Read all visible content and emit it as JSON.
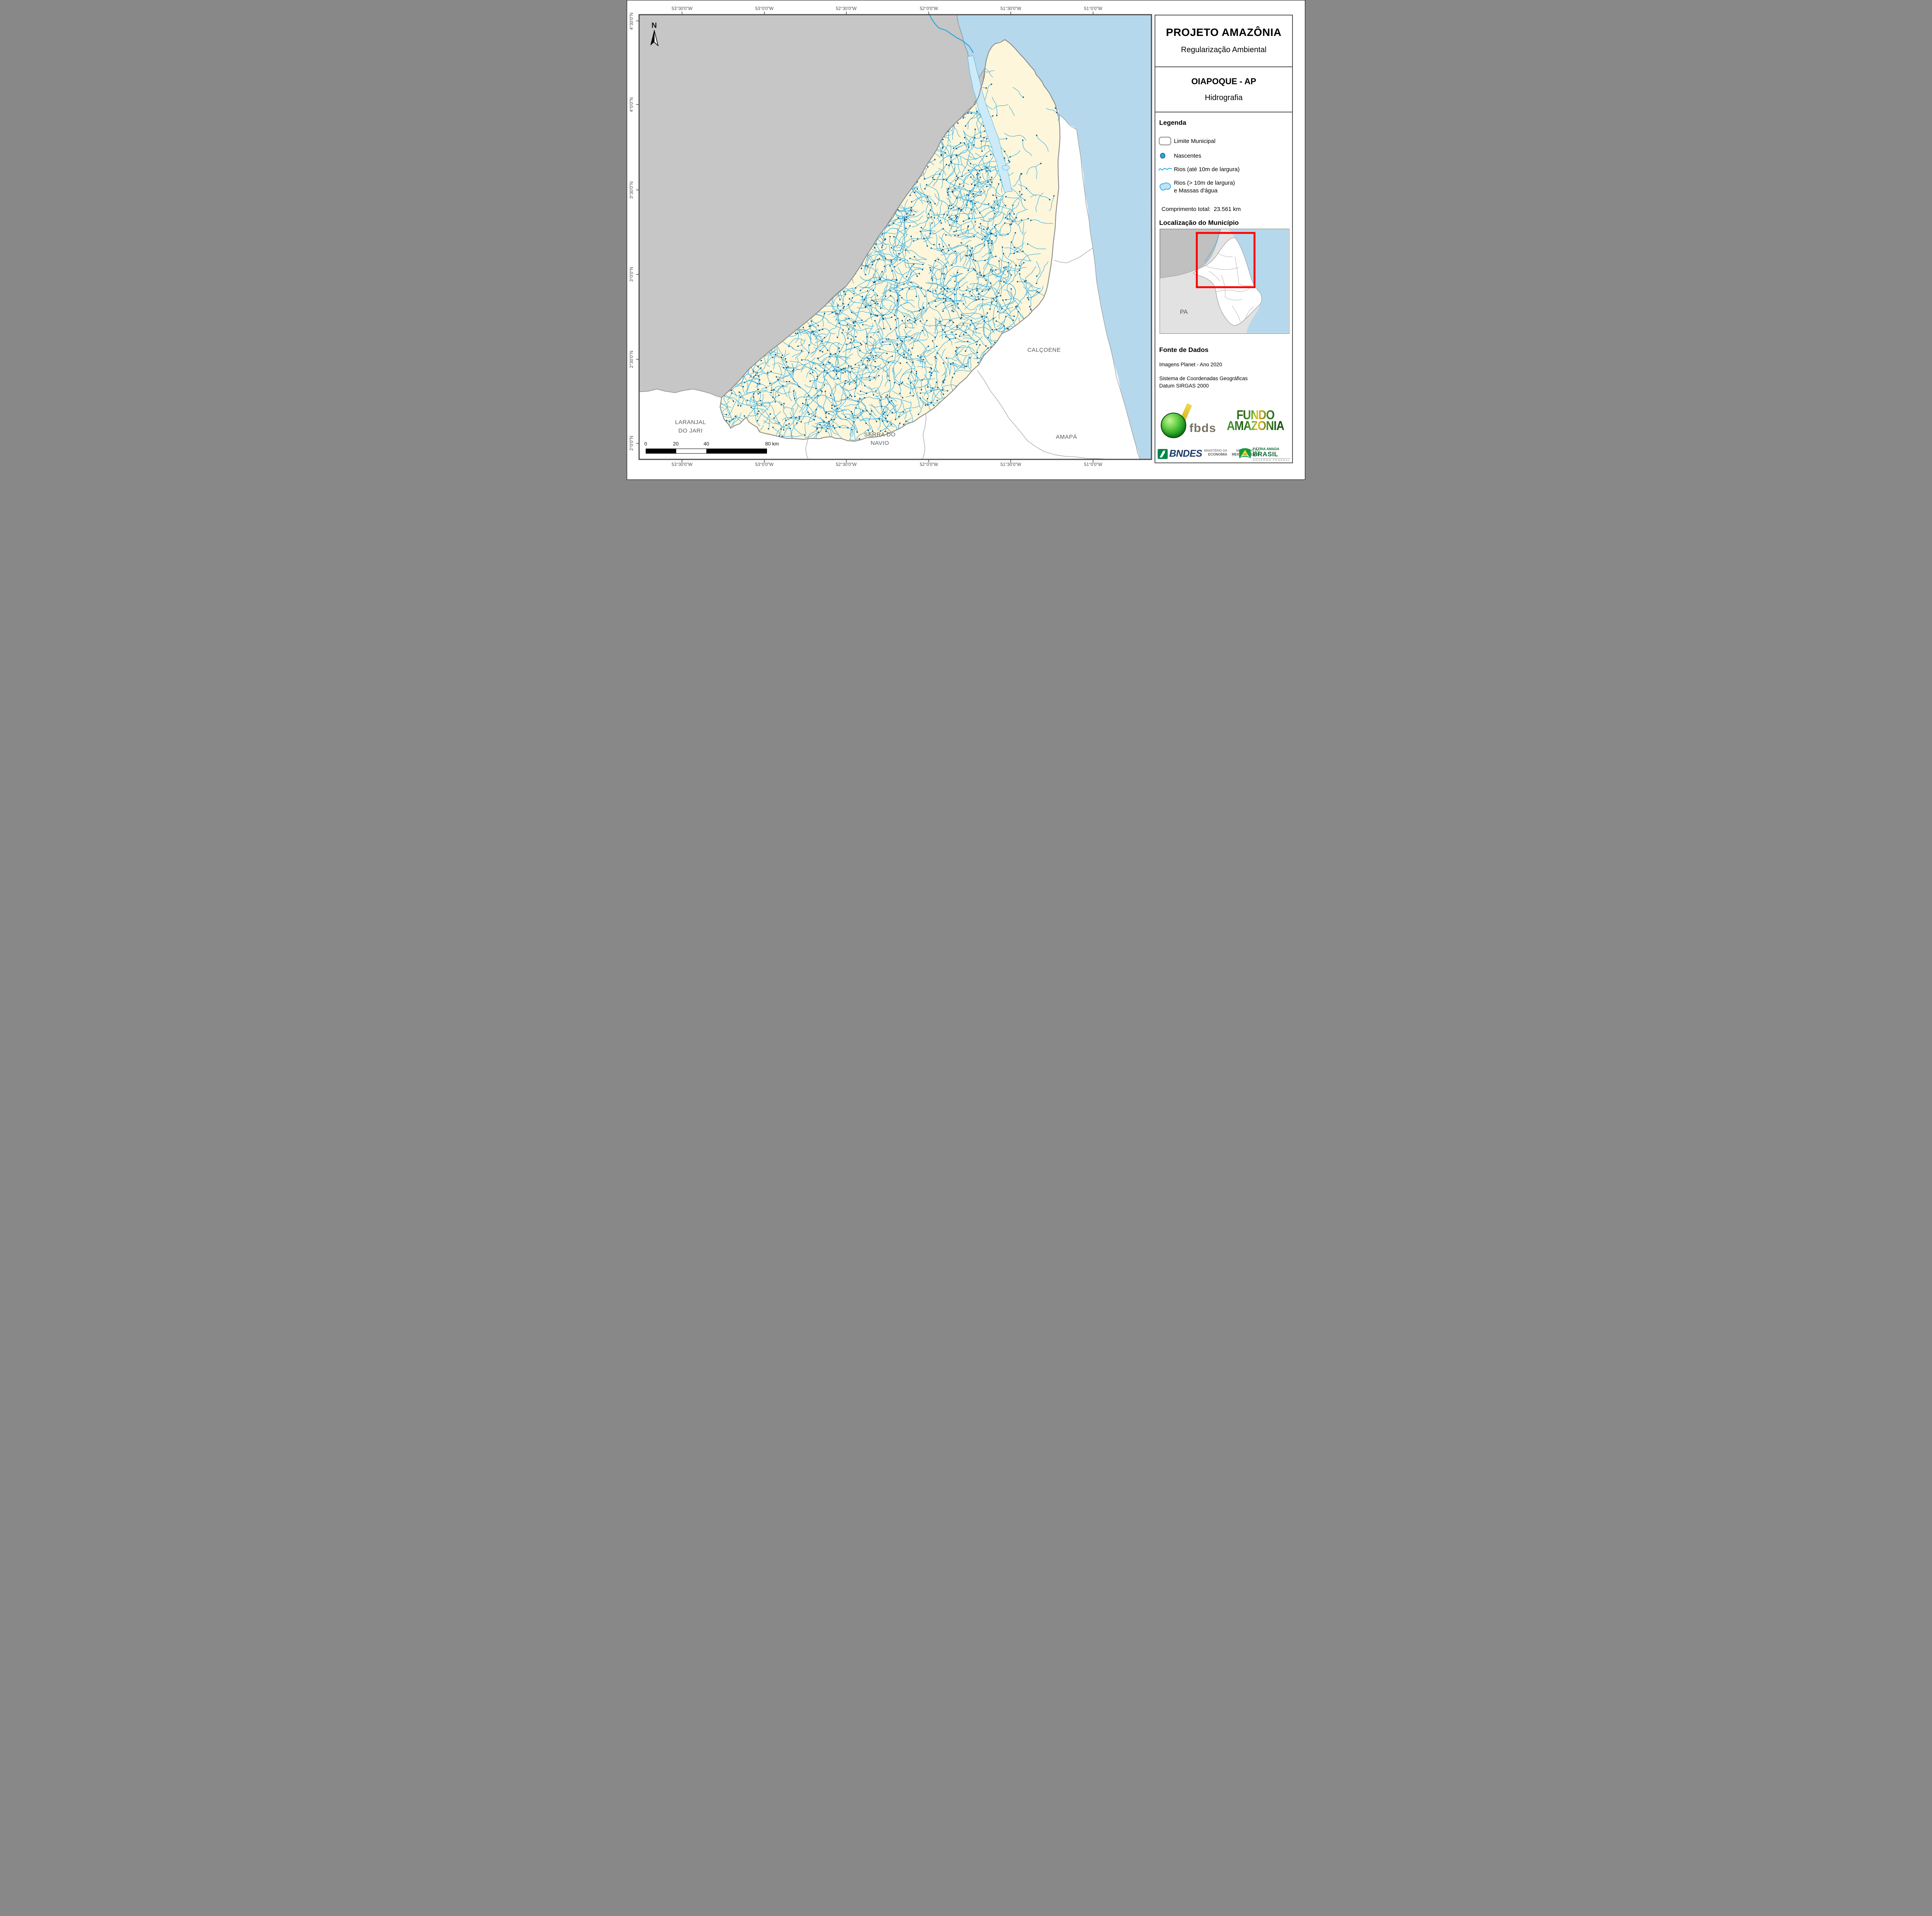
{
  "header": {
    "title": "PROJETO AMAZÔNIA",
    "subtitle": "Regularização Ambiental",
    "municipality": "OIAPOQUE - AP",
    "map_type": "Hidrografia"
  },
  "legend": {
    "heading": "Legenda",
    "items": {
      "limite": "Limite Municipal",
      "nascentes": "Nascentes",
      "rios_finos": "Rios (até 10m de largura)",
      "rios_largos_l1": "Rios (> 10m de largura)",
      "rios_largos_l2": "e Massas d'água"
    },
    "total_label": "Comprimento total:",
    "total_value": "23.561 km"
  },
  "location": {
    "heading": "Localização do Município",
    "state_label": "PA"
  },
  "source": {
    "heading": "Fonte de Dados",
    "line1": "Imagens Planet - Ano 2020",
    "line2": "Sistema de Coordenadas Geográficas",
    "line3": "Datum SIRGAS 2000"
  },
  "logos": {
    "fbds": "fbds",
    "fundo_l1": "FUNDO",
    "fundo_l2": "AMAZÔNIA",
    "bndes": "BNDES",
    "min1_l1": "MINISTÉRIO DA",
    "min1_l2": "ECONOMIA",
    "min2_l1": "MINISTÉRIO DO",
    "min2_l2": "MEIO AMBIENTE",
    "brasil_l1": "PÁTRIA AMADA",
    "brasil_l2": "BRASIL",
    "brasil_l3": "GOVERNO FEDERAL"
  },
  "map_labels": {
    "laranjal_l1": "LARANJAL",
    "laranjal_l2": "DO JARI",
    "serra_l1": "SERRA DO",
    "serra_l2": "NAVIO",
    "calcoene": "CALÇOENE",
    "amapa": "AMAPÁ",
    "north": "N"
  },
  "axes": {
    "lon": [
      "53°30'0\"W",
      "53°0'0\"W",
      "52°30'0\"W",
      "52°0'0\"W",
      "51°30'0\"W",
      "51°0'0\"W"
    ],
    "lat": [
      "4°30'0\"N",
      "4°0'0\"N",
      "3°30'0\"N",
      "3°0'0\"N",
      "2°30'0\"N",
      "2°0'0\"N"
    ]
  },
  "scalebar": {
    "t0": "0",
    "t20": "20",
    "t40": "40",
    "t80": "80 km"
  },
  "colors": {
    "ocean": "#b5d8ec",
    "neighbor_country": "#c6c6c6",
    "municipality_fill": "#fdf6da",
    "river": "#29a8e0",
    "nascente": "#19567a",
    "wide_river": "#cdeaf8",
    "boundary_gray": "#8c8c8c",
    "locator_red": "#ff0000"
  }
}
